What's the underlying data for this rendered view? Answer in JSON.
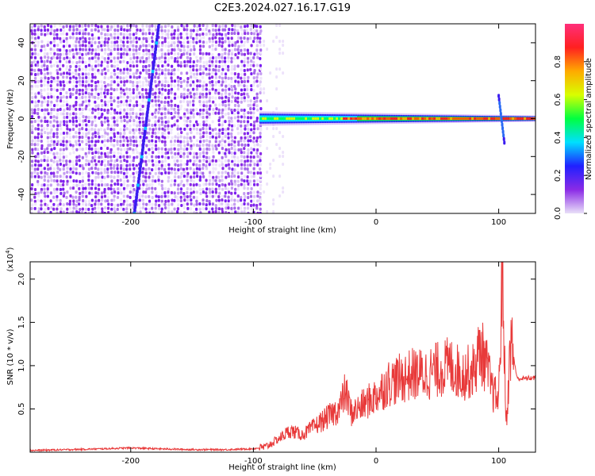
{
  "title": "C2E3.2024.027.16.17.G19",
  "chart_data": [
    {
      "type": "heatmap",
      "xlabel": "Height of straight line (km)",
      "ylabel": "Frequency (Hz)",
      "xlim": [
        -282,
        130
      ],
      "ylim": [
        -50,
        50
      ],
      "xticks": [
        -200,
        -100,
        0,
        100
      ],
      "yticks": [
        -40,
        -20,
        0,
        20,
        40
      ],
      "colorbar": {
        "label": "Normalized spectral amplitude",
        "range": [
          0.0,
          1.0
        ],
        "ticks": [
          "0.0",
          "0.2",
          "0.4",
          "0.6",
          "0.8"
        ],
        "tick_values": [
          0.0,
          0.2,
          0.4,
          0.6,
          0.8
        ],
        "colors": [
          "#e9e0f8",
          "#8b2be6",
          "#2020ff",
          "#00e0ff",
          "#00ff40",
          "#d8ff00",
          "#ffaa00",
          "#ff2020",
          "#ff2f7a"
        ]
      },
      "features": {
        "noise_region_x": [
          -282,
          -95
        ],
        "signal_band": {
          "x_start": -95,
          "x_end": 130,
          "frequency_hz": 0
        },
        "diagonal_streak": {
          "x": [
            -197,
            -177
          ],
          "y": [
            -50,
            50
          ]
        },
        "spike_near_x": 100
      }
    },
    {
      "type": "line",
      "xlabel": "Height of straight line (km)",
      "ylabel": "SNR (10 * v/v)",
      "y_multiplier": "(x10",
      "y_multiplier_exp": "4",
      "y_multiplier_close": ")",
      "xlim": [
        -282,
        130
      ],
      "ylim": [
        0,
        2.2
      ],
      "xticks": [
        -200,
        -100,
        0,
        100
      ],
      "yticks": [
        "0.5",
        "1.0",
        "1.5",
        "2.0"
      ],
      "ytick_values": [
        0.5,
        1.0,
        1.5,
        2.0
      ],
      "color": "#e83a3a",
      "series": [
        {
          "x": [
            -282,
            -250,
            -220,
            -200,
            -180,
            -150,
            -120,
            -100,
            -90,
            -80,
            -70,
            -60,
            -50,
            -40,
            -30,
            -25,
            -20,
            -10,
            0,
            10,
            20,
            30,
            40,
            50,
            60,
            70,
            80,
            85,
            90,
            95,
            100,
            103,
            106,
            110,
            115,
            120,
            130
          ],
          "y": [
            0.02,
            0.03,
            0.04,
            0.05,
            0.04,
            0.03,
            0.03,
            0.04,
            0.06,
            0.15,
            0.25,
            0.2,
            0.3,
            0.4,
            0.5,
            0.7,
            0.45,
            0.55,
            0.65,
            0.8,
            0.85,
            0.9,
            0.9,
            0.95,
            1.0,
            0.9,
            0.95,
            1.2,
            1.0,
            0.7,
            0.6,
            2.2,
            0.3,
            1.3,
            0.85,
            0.85,
            0.86
          ]
        }
      ]
    }
  ]
}
